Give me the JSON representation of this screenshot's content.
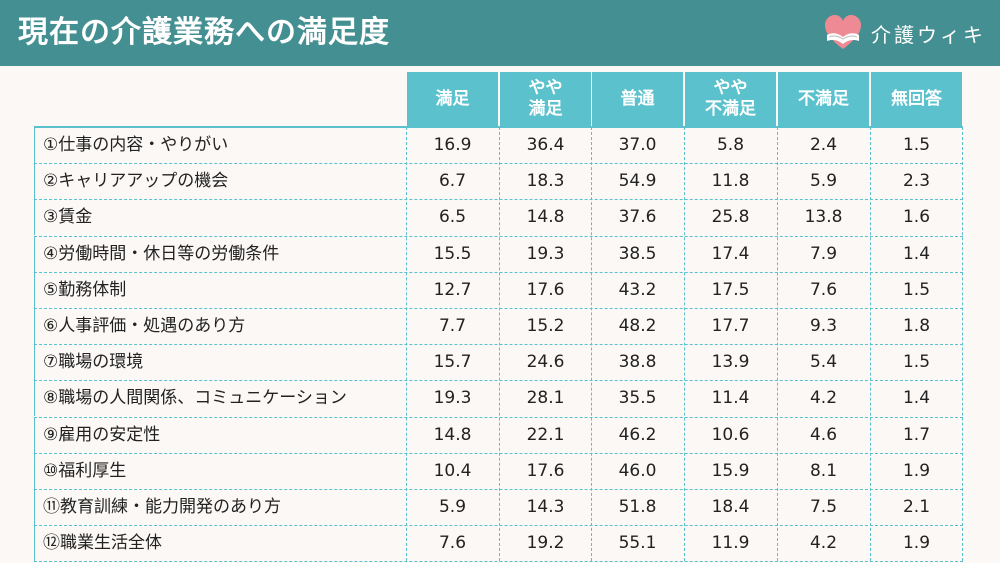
{
  "header": {
    "title": "現在の介護業務への満足度",
    "brand": "介護ウィキ",
    "brand_icon": "heart-hands-icon",
    "bg_color": "#448f92"
  },
  "colors": {
    "header_cell": "#5bc1cd",
    "grid": "#5bc1cd",
    "background": "#fbf8f6"
  },
  "chart_data": {
    "type": "table",
    "title": "現在の介護業務への満足度",
    "columns": [
      {
        "lines": [
          "満足"
        ]
      },
      {
        "lines": [
          "やや",
          "満足"
        ]
      },
      {
        "lines": [
          "普通"
        ]
      },
      {
        "lines": [
          "やや",
          "不満足"
        ]
      },
      {
        "lines": [
          "不満足"
        ]
      },
      {
        "lines": [
          "無回答"
        ]
      }
    ],
    "rows": [
      {
        "label": "①仕事の内容・やりがい",
        "values": [
          "16.9",
          "36.4",
          "37.0",
          "5.8",
          "2.4",
          "1.5"
        ]
      },
      {
        "label": "②キャリアアップの機会",
        "values": [
          "6.7",
          "18.3",
          "54.9",
          "11.8",
          "5.9",
          "2.3"
        ]
      },
      {
        "label": "③賃金",
        "values": [
          "6.5",
          "14.8",
          "37.6",
          "25.8",
          "13.8",
          "1.6"
        ]
      },
      {
        "label": "④労働時間・休日等の労働条件",
        "values": [
          "15.5",
          "19.3",
          "38.5",
          "17.4",
          "7.9",
          "1.4"
        ]
      },
      {
        "label": "⑤勤務体制",
        "values": [
          "12.7",
          "17.6",
          "43.2",
          "17.5",
          "7.6",
          "1.5"
        ]
      },
      {
        "label": "⑥人事評価・処遇のあり方",
        "values": [
          "7.7",
          "15.2",
          "48.2",
          "17.7",
          "9.3",
          "1.8"
        ]
      },
      {
        "label": "⑦職場の環境",
        "values": [
          "15.7",
          "24.6",
          "38.8",
          "13.9",
          "5.4",
          "1.5"
        ]
      },
      {
        "label": "⑧職場の人間関係、コミュニケーション",
        "values": [
          "19.3",
          "28.1",
          "35.5",
          "11.4",
          "4.2",
          "1.4"
        ]
      },
      {
        "label": "⑨雇用の安定性",
        "values": [
          "14.8",
          "22.1",
          "46.2",
          "10.6",
          "4.6",
          "1.7"
        ]
      },
      {
        "label": "⑩福利厚生",
        "values": [
          "10.4",
          "17.6",
          "46.0",
          "15.9",
          "8.1",
          "1.9"
        ]
      },
      {
        "label": "⑪教育訓練・能力開発のあり方",
        "values": [
          "5.9",
          "14.3",
          "51.8",
          "18.4",
          "7.5",
          "2.1"
        ]
      },
      {
        "label": "⑫職業生活全体",
        "values": [
          "7.6",
          "19.2",
          "55.1",
          "11.9",
          "4.2",
          "1.9"
        ]
      }
    ]
  }
}
